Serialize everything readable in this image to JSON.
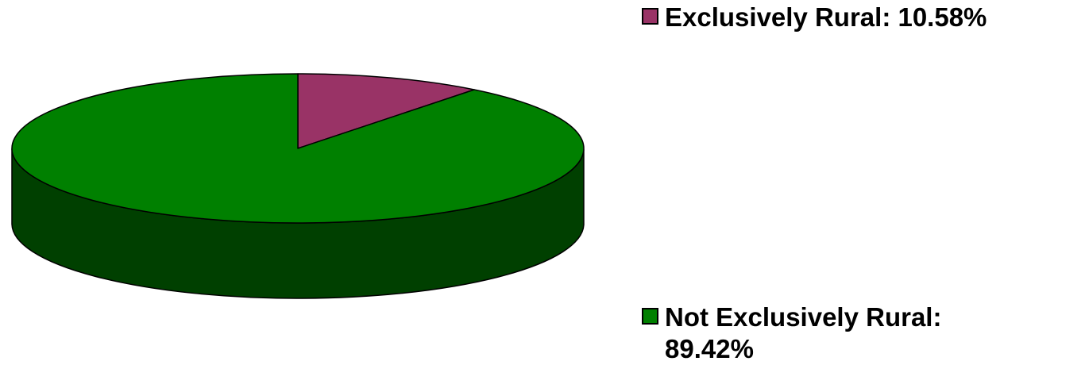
{
  "chart_data": {
    "type": "pie",
    "style": "3d",
    "slices": [
      {
        "label": "Exclusively Rural",
        "value": 10.58,
        "legend_lines": [
          "Exclusively Rural: 10.58%"
        ],
        "color": "#993366",
        "side_color": "#4d1a33"
      },
      {
        "label": "Not Exclusively Rural",
        "value": 89.42,
        "legend_lines": [
          "Not Exclusively Rural:",
          "89.42%"
        ],
        "color": "#008000",
        "side_color": "#004000"
      }
    ],
    "legend_position": "right",
    "outline_color": "#000000"
  }
}
